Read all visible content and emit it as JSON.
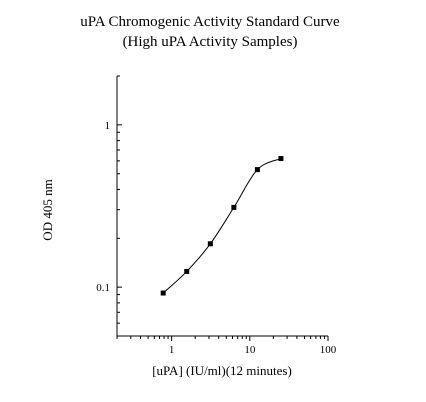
{
  "chart_data": {
    "type": "scatter",
    "title": "uPA Chromogenic Activity Standard Curve",
    "subtitle": "(High uPA Activity Samples)",
    "xlabel": "[uPA] (IU/ml)(12 minutes)",
    "ylabel": "OD 405 nm",
    "xscale": "log",
    "yscale": "log",
    "xlim": [
      0.2,
      100
    ],
    "ylim": [
      0.05,
      2.0
    ],
    "x_ticks": [
      1,
      10,
      100
    ],
    "x_tick_labels": [
      "1",
      "10",
      "100"
    ],
    "y_ticks": [
      0.1,
      1
    ],
    "y_tick_labels": [
      "0.1",
      "1"
    ],
    "grid": false,
    "legend": "none",
    "series": [
      {
        "x": [
          0.78,
          1.56,
          3.125,
          6.25,
          12.5,
          25
        ],
        "y": [
          0.092,
          0.125,
          0.185,
          0.31,
          0.53,
          0.62
        ],
        "marker": "square",
        "color": "#000000",
        "fit": "smooth-curve"
      }
    ]
  }
}
